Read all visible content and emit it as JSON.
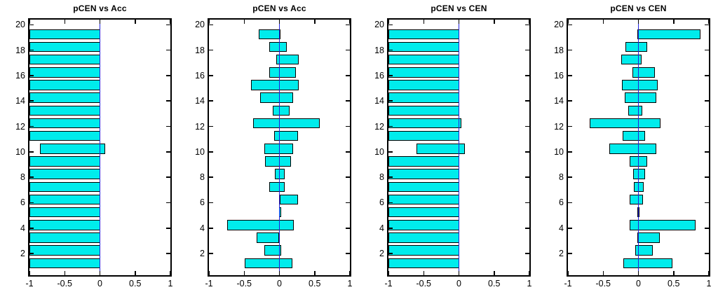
{
  "figure": {
    "background_color": "#ffffff",
    "bar_fill_color": "#00ECEC",
    "bar_edge_color": "#000000",
    "zero_line_color": "#2222dd",
    "axis_line_color": "#000000"
  },
  "axes": {
    "xlim": [
      -1,
      1
    ],
    "ylim": [
      0.3,
      20.4
    ],
    "x_ticks": [
      -1,
      -0.5,
      0,
      0.5,
      1
    ],
    "x_tick_labels": [
      "-1",
      "-0.5",
      "0",
      "0.5",
      "1"
    ],
    "y_ticks": [
      2,
      4,
      6,
      8,
      10,
      12,
      14,
      16,
      18,
      20
    ],
    "y_tick_labels": [
      "2",
      "4",
      "6",
      "8",
      "10",
      "12",
      "14",
      "16",
      "18",
      "20"
    ],
    "grid": false,
    "n_bars": 19,
    "bar_width": 0.8,
    "bar_center_offset": 0.25
  },
  "chart_data": [
    {
      "type": "bar",
      "orientation": "horizontal",
      "title": "pCEN vs Acc",
      "bar_format": "[left_extent, right_extent]",
      "categories": [
        1,
        2,
        3,
        4,
        5,
        6,
        7,
        8,
        9,
        10,
        11,
        12,
        13,
        14,
        15,
        16,
        17,
        18,
        19
      ],
      "bars": [
        [
          -1,
          0
        ],
        [
          -1,
          0
        ],
        [
          -1,
          0
        ],
        [
          -1,
          0
        ],
        [
          -1,
          0
        ],
        [
          -1,
          0
        ],
        [
          -1,
          0
        ],
        [
          -1,
          0
        ],
        [
          -1,
          0
        ],
        [
          -0.85,
          0.07
        ],
        [
          -1,
          0
        ],
        [
          -1,
          0
        ],
        [
          -1,
          0
        ],
        [
          -1,
          0
        ],
        [
          -1,
          0
        ],
        [
          -1,
          0
        ],
        [
          -1,
          0
        ],
        [
          -1,
          0
        ],
        [
          -1,
          0
        ]
      ]
    },
    {
      "type": "bar",
      "orientation": "horizontal",
      "title": "pCEN vs Acc",
      "bar_format": "[left_extent, right_extent]",
      "categories": [
        1,
        2,
        3,
        4,
        5,
        6,
        7,
        8,
        9,
        10,
        11,
        12,
        13,
        14,
        15,
        16,
        17,
        18,
        19
      ],
      "bars": [
        [
          -0.49,
          0.18
        ],
        [
          -0.21,
          0.03
        ],
        [
          -0.32,
          0
        ],
        [
          -0.74,
          0.2
        ],
        [
          -0.01,
          0
        ],
        [
          0,
          0.26
        ],
        [
          -0.14,
          0.08
        ],
        [
          -0.07,
          0.07
        ],
        [
          -0.2,
          0.16
        ],
        [
          -0.21,
          0.19
        ],
        [
          -0.08,
          0.26
        ],
        [
          -0.37,
          0.57
        ],
        [
          -0.1,
          0.14
        ],
        [
          -0.27,
          0.19
        ],
        [
          -0.4,
          0.27
        ],
        [
          -0.14,
          0.23
        ],
        [
          -0.05,
          0.27
        ],
        [
          -0.14,
          0.11
        ],
        [
          -0.29,
          0.01
        ]
      ]
    },
    {
      "type": "bar",
      "orientation": "horizontal",
      "title": "pCEN vs CEN",
      "bar_format": "[left_extent, right_extent]",
      "categories": [
        1,
        2,
        3,
        4,
        5,
        6,
        7,
        8,
        9,
        10,
        11,
        12,
        13,
        14,
        15,
        16,
        17,
        18,
        19
      ],
      "bars": [
        [
          -1,
          0
        ],
        [
          -1,
          0
        ],
        [
          -1,
          0
        ],
        [
          -1,
          0
        ],
        [
          -1,
          0
        ],
        [
          -1,
          0
        ],
        [
          -1,
          0
        ],
        [
          -1,
          0
        ],
        [
          -1,
          0
        ],
        [
          -0.6,
          0.09
        ],
        [
          -1,
          0
        ],
        [
          -1,
          0.03
        ],
        [
          -1,
          0
        ],
        [
          -1,
          0
        ],
        [
          -1,
          0
        ],
        [
          -1,
          0
        ],
        [
          -1,
          0
        ],
        [
          -1,
          0
        ],
        [
          -1,
          0
        ]
      ]
    },
    {
      "type": "bar",
      "orientation": "horizontal",
      "title": "pCEN vs CEN",
      "bar_format": "[left_extent, right_extent]",
      "categories": [
        1,
        2,
        3,
        4,
        5,
        6,
        7,
        8,
        9,
        10,
        11,
        12,
        13,
        14,
        15,
        16,
        17,
        18,
        19
      ],
      "bars": [
        [
          -0.21,
          0.48
        ],
        [
          -0.05,
          0.2
        ],
        [
          -0.02,
          0.3
        ],
        [
          -0.12,
          0.81
        ],
        [
          -0.02,
          0
        ],
        [
          -0.12,
          0.07
        ],
        [
          -0.07,
          0.07
        ],
        [
          -0.08,
          0.09
        ],
        [
          -0.12,
          0.13
        ],
        [
          -0.41,
          0.25
        ],
        [
          -0.22,
          0.09
        ],
        [
          -0.69,
          0.31
        ],
        [
          -0.14,
          0.06
        ],
        [
          -0.19,
          0.25
        ],
        [
          -0.23,
          0.27
        ],
        [
          -0.09,
          0.23
        ],
        [
          -0.24,
          0.05
        ],
        [
          -0.18,
          0.12
        ],
        [
          -0.02,
          0.88
        ]
      ]
    }
  ]
}
